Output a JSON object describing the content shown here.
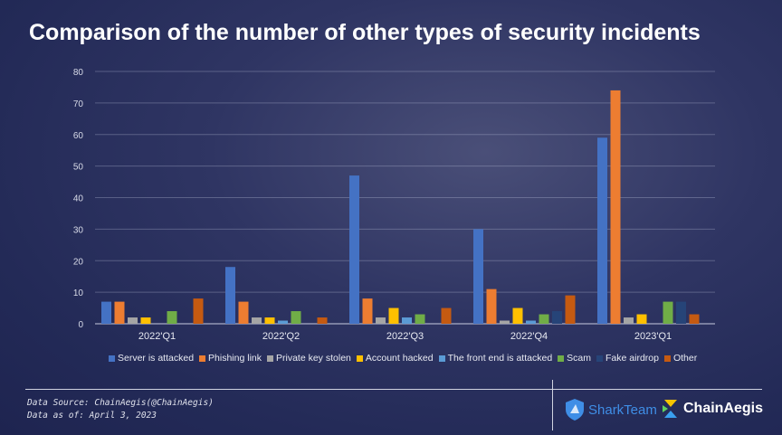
{
  "chart_data": {
    "type": "bar",
    "title": "Comparison of the number of other types of security incidents",
    "categories": [
      "2022'Q1",
      "2022'Q2",
      "2022'Q3",
      "2022'Q4",
      "2023'Q1"
    ],
    "ylim": [
      0,
      80
    ],
    "yticks": [
      0,
      10,
      20,
      30,
      40,
      50,
      60,
      70,
      80
    ],
    "grid": true,
    "legend_position": "bottom",
    "series": [
      {
        "name": "Server is attacked",
        "color": "#4472c4",
        "values": [
          7,
          18,
          47,
          30,
          59
        ]
      },
      {
        "name": "Phishing link",
        "color": "#ed7d31",
        "values": [
          7,
          7,
          8,
          11,
          74
        ]
      },
      {
        "name": "Private key stolen",
        "color": "#a5a5a5",
        "values": [
          2,
          2,
          2,
          1,
          2
        ]
      },
      {
        "name": "Account hacked",
        "color": "#ffc000",
        "values": [
          2,
          2,
          5,
          5,
          3
        ]
      },
      {
        "name": "The front end is attacked",
        "color": "#5b9bd5",
        "values": [
          0,
          1,
          2,
          1,
          0
        ]
      },
      {
        "name": "Scam",
        "color": "#70ad47",
        "values": [
          4,
          4,
          3,
          3,
          7
        ]
      },
      {
        "name": "Fake airdrop",
        "color": "#264478",
        "values": [
          0,
          0,
          0,
          4,
          7
        ]
      },
      {
        "name": "Other",
        "color": "#c55a11",
        "values": [
          8,
          2,
          5,
          9,
          3
        ]
      }
    ]
  },
  "footer": {
    "source": "Data Source: ChainAegis(@ChainAegis)",
    "date": "Data as of: April 3, 2023",
    "logo1": "SharkTeam",
    "logo2": "ChainAegis"
  }
}
